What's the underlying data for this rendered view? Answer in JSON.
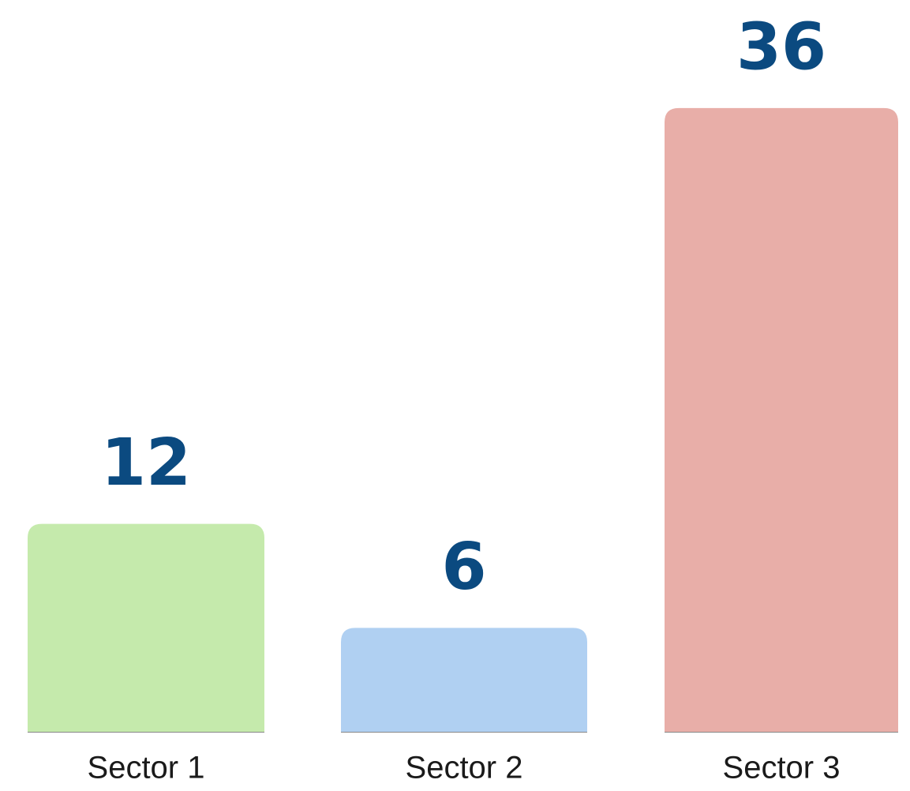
{
  "chart_data": {
    "type": "bar",
    "categories": [
      "Sector 1",
      "Sector 2",
      "Sector 3"
    ],
    "values": [
      12,
      6,
      36
    ],
    "colors": [
      "#c5eaac",
      "#b0d0f2",
      "#e8aea8"
    ],
    "ylim": [
      0,
      38
    ]
  }
}
